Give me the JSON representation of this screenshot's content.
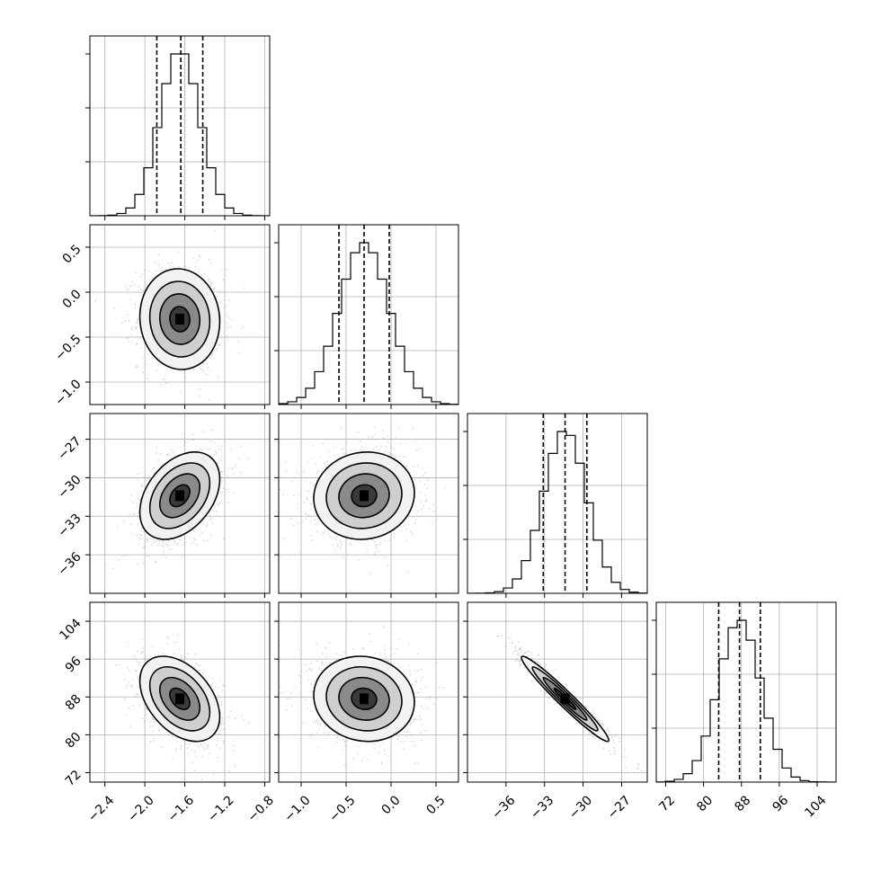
{
  "chart_data": {
    "type": "corner",
    "grid": true,
    "parameters": [
      {
        "ticks": [
          -2.4,
          -2.0,
          -1.6,
          -1.2,
          -0.8
        ],
        "tick_labels": [
          "−2.4",
          "−2.0",
          "−1.6",
          "−1.2",
          "−0.8"
        ],
        "range": [
          -2.55,
          -0.75
        ],
        "mean": -1.65,
        "sigma": 0.2,
        "quantiles": [
          -1.88,
          -1.64,
          -1.42
        ]
      },
      {
        "ticks": [
          -1.0,
          -0.5,
          0.0,
          0.5
        ],
        "tick_labels": [
          "−1.0",
          "−0.5",
          "0.0",
          "0.5"
        ],
        "range": [
          -1.25,
          0.75
        ],
        "mean": -0.3,
        "sigma": 0.28,
        "quantiles": [
          -0.58,
          -0.3,
          -0.02
        ]
      },
      {
        "ticks": [
          -36,
          -33,
          -30,
          -27
        ],
        "tick_labels": [
          "−36",
          "−33",
          "−30",
          "−27"
        ],
        "range": [
          -39,
          -25
        ],
        "mean": -31.4,
        "sigma": 1.7,
        "quantiles": [
          -33.1,
          -31.4,
          -29.7
        ]
      },
      {
        "ticks": [
          72,
          80,
          88,
          96,
          104
        ],
        "tick_labels": [
          "72",
          "80",
          "88",
          "96",
          "104"
        ],
        "range": [
          70,
          108
        ],
        "mean": 87.6,
        "sigma": 4.5,
        "quantiles": [
          83.2,
          87.6,
          92.0
        ]
      }
    ],
    "correlations": [
      [
        1.0,
        -0.05,
        0.38,
        -0.42
      ],
      [
        -0.05,
        1.0,
        0.06,
        -0.08
      ],
      [
        0.38,
        0.06,
        1.0,
        -0.97
      ],
      [
        -0.42,
        -0.08,
        -0.97,
        1.0
      ]
    ],
    "histograms": {
      "bins": 20,
      "peak_fraction": 0.9
    },
    "contour_levels_sigma": [
      0.5,
      1.0,
      1.5,
      2.0
    ]
  }
}
